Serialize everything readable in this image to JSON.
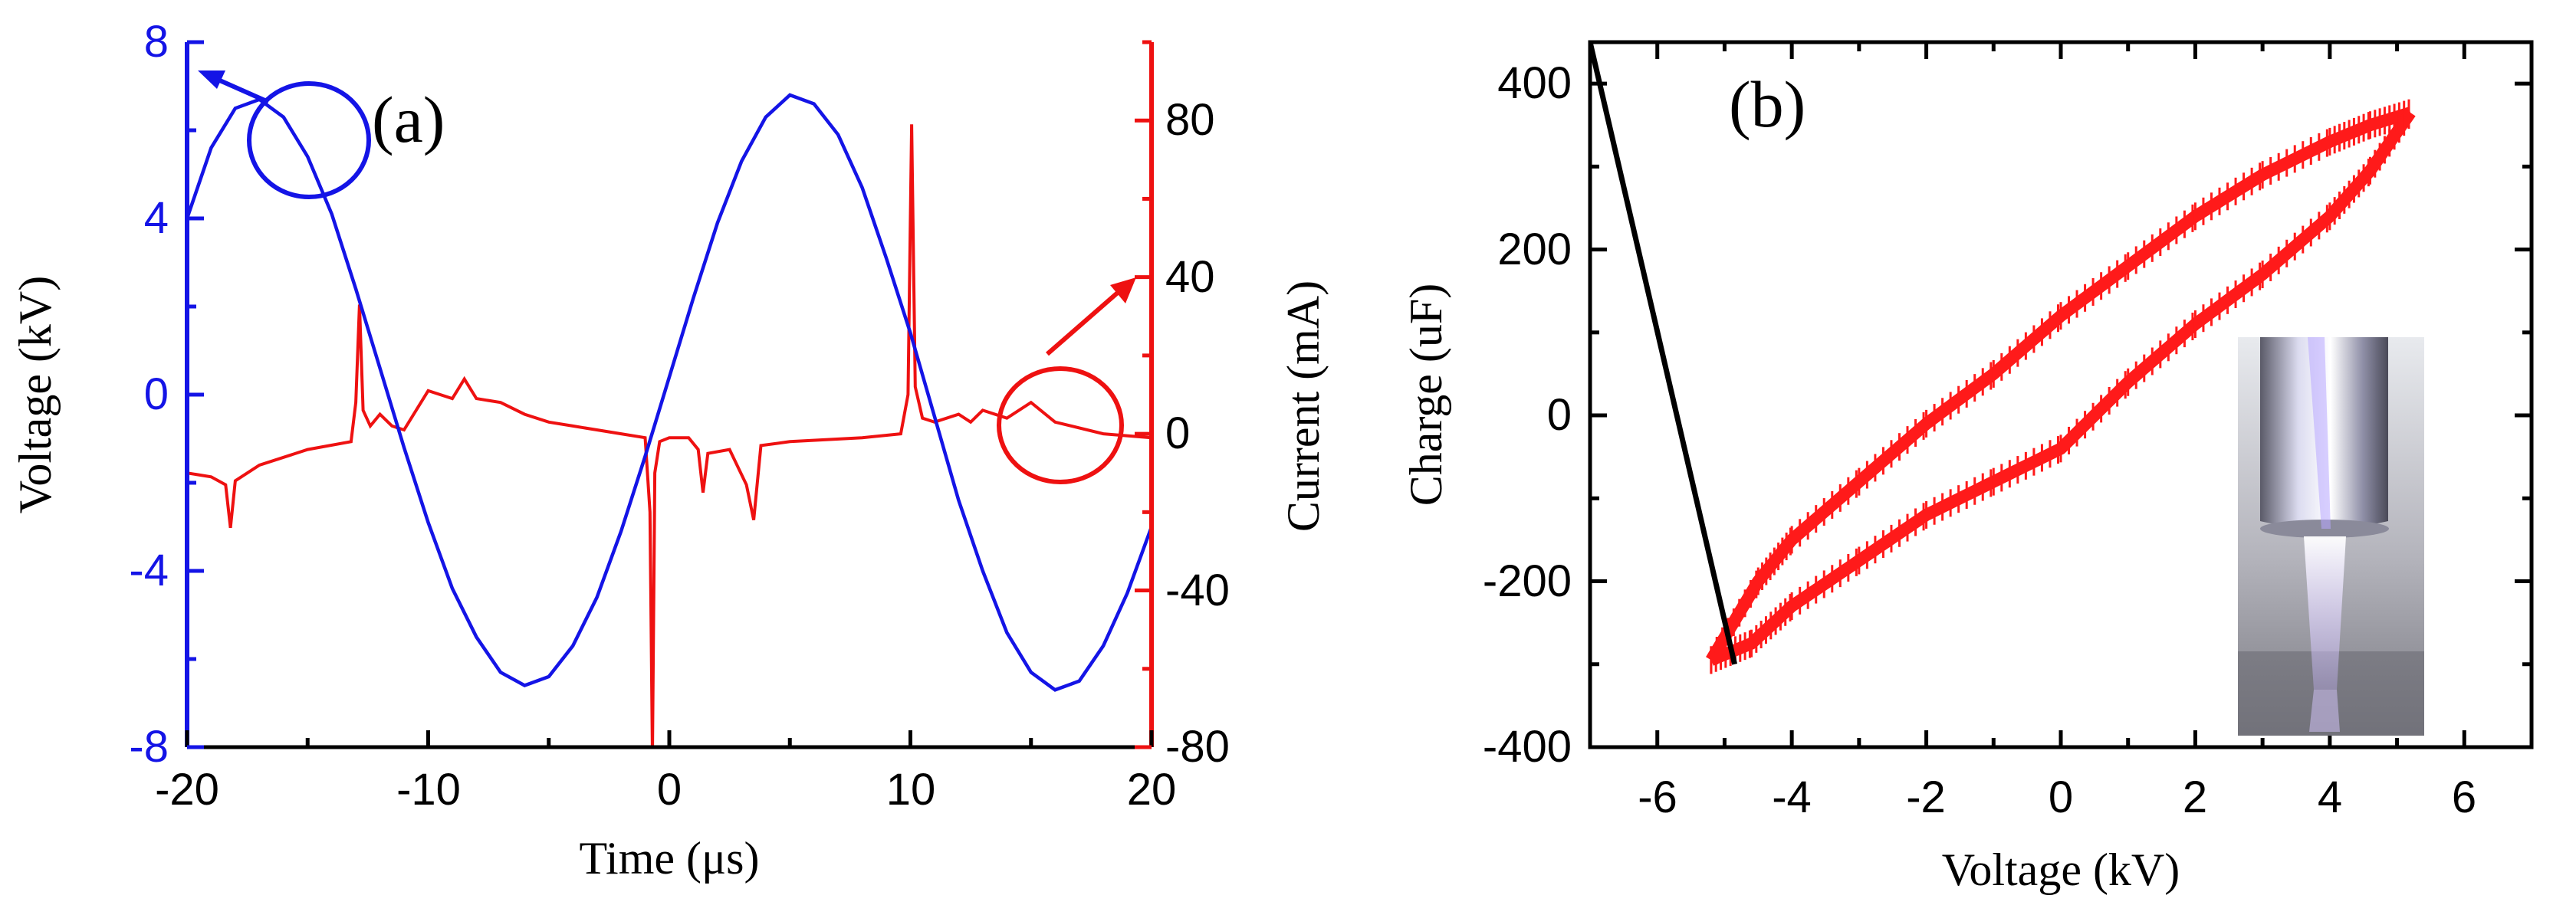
{
  "colors": {
    "voltage": "#1414e6",
    "current": "#ee1111",
    "loop": "#ff1a1a",
    "axis": "#000000",
    "line": "#000000"
  },
  "chart_data": [
    {
      "type": "line",
      "panel_label": "(a)",
      "title": "",
      "xlabel": "Time (μs)",
      "ylabel": "Voltage (kV)",
      "y2label": "Current (mA)",
      "xlim": [
        -20,
        20
      ],
      "ylim": [
        -8,
        8
      ],
      "y2lim": [
        -80,
        100
      ],
      "x_ticks": [
        "-20",
        "-10",
        "0",
        "10",
        "20"
      ],
      "y_ticks": [
        "-8",
        "-4",
        "0",
        "4",
        "8"
      ],
      "y2_ticks": [
        "-80",
        "-40",
        "0",
        "40",
        "80"
      ],
      "series": [
        {
          "name": "Voltage",
          "axis": "left",
          "x": [
            -20,
            -19,
            -18,
            -17,
            -16,
            -15,
            -14,
            -13,
            -12,
            -11,
            -10,
            -9,
            -8,
            -7,
            -6,
            -5,
            -4,
            -3,
            -2,
            -1,
            0,
            1,
            2,
            3,
            4,
            5,
            6,
            7,
            8,
            9,
            10,
            11,
            12,
            13,
            14,
            15,
            16,
            17,
            18,
            19,
            20
          ],
          "y": [
            4.0,
            5.6,
            6.5,
            6.7,
            6.3,
            5.4,
            4.1,
            2.4,
            0.6,
            -1.2,
            -2.9,
            -4.4,
            -5.5,
            -6.3,
            -6.6,
            -6.4,
            -5.7,
            -4.6,
            -3.1,
            -1.4,
            0.4,
            2.2,
            3.9,
            5.3,
            6.3,
            6.8,
            6.6,
            5.9,
            4.7,
            3.1,
            1.4,
            -0.5,
            -2.4,
            -4.0,
            -5.4,
            -6.3,
            -6.7,
            -6.5,
            -5.7,
            -4.5,
            -3.0
          ]
        },
        {
          "name": "Current",
          "axis": "right",
          "x": [
            -20,
            -19,
            -18.4,
            -18.2,
            -18.0,
            -17.0,
            -15.0,
            -13.2,
            -13.0,
            -12.85,
            -12.7,
            -12.4,
            -12.0,
            -11.5,
            -11.0,
            -10.0,
            -9.0,
            -8.5,
            -8.0,
            -7.0,
            -6.0,
            -5.0,
            -4.0,
            -3.0,
            -2.0,
            -1.0,
            -0.8,
            -0.7,
            -0.6,
            -0.4,
            0.0,
            0.8,
            1.2,
            1.4,
            1.6,
            2.5,
            3.2,
            3.5,
            3.8,
            5.0,
            8.0,
            9.6,
            9.9,
            10.05,
            10.2,
            10.5,
            11.0,
            12.0,
            12.5,
            13.0,
            14.0,
            15.0,
            16.0,
            18.0,
            20.0
          ],
          "y": [
            -10,
            -11,
            -13,
            -24,
            -12,
            -8,
            -4,
            -2,
            8,
            33,
            6,
            2,
            5,
            2,
            1,
            11,
            9,
            14,
            9,
            8,
            5,
            3,
            2,
            1,
            0,
            -1,
            -20,
            -82,
            -10,
            -2,
            -1,
            -1,
            -4,
            -15,
            -5,
            -4,
            -13,
            -22,
            -3,
            -2,
            -1,
            0,
            10,
            79,
            12,
            4,
            3,
            5,
            3,
            6,
            4,
            8,
            3,
            0,
            -1
          ]
        }
      ],
      "annotations": [
        "blue ellipse with arrow pointing to left axis",
        "red ellipse with arrow pointing to right axis"
      ]
    },
    {
      "type": "line",
      "panel_label": "(b)",
      "title": "",
      "xlabel": "Voltage (kV)",
      "ylabel": "Charge (uF)",
      "xlim": [
        -7,
        7
      ],
      "ylim": [
        -400,
        450
      ],
      "x_ticks": [
        "-6",
        "-4",
        "-2",
        "0",
        "2",
        "4",
        "6"
      ],
      "y_ticks": [
        "-400",
        "-200",
        "0",
        "200",
        "400"
      ],
      "series": [
        {
          "name": "Q-V loop (upper branch)",
          "x": [
            -5.2,
            -4.5,
            -4.0,
            -3.0,
            -2.0,
            -1.0,
            0.0,
            1.0,
            2.0,
            3.0,
            4.0,
            4.6,
            5.2
          ],
          "y": [
            -295,
            -200,
            -150,
            -80,
            -10,
            50,
            120,
            180,
            240,
            290,
            330,
            350,
            365
          ]
        },
        {
          "name": "Q-V loop (lower branch)",
          "x": [
            -5.2,
            -4.6,
            -4.0,
            -3.0,
            -2.0,
            -1.0,
            0.0,
            1.0,
            2.0,
            3.0,
            4.0,
            4.6,
            5.2
          ],
          "y": [
            -295,
            -275,
            -230,
            -175,
            -120,
            -80,
            -40,
            40,
            110,
            170,
            240,
            295,
            365
          ]
        },
        {
          "name": "Straight line",
          "x": [
            -7.0,
            -4.85
          ],
          "y": [
            450,
            -300
          ]
        }
      ],
      "annotations": [
        "inset photograph of plasma jet discharge"
      ]
    }
  ]
}
